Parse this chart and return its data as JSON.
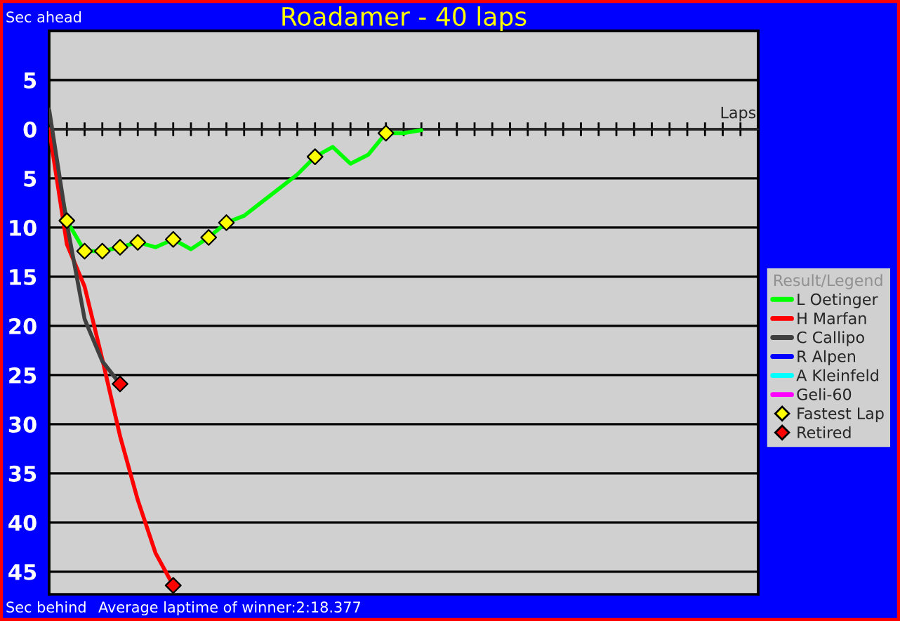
{
  "chart_data": {
    "type": "line",
    "title": "Roadamer - 40 laps",
    "xlabel": "Laps",
    "legend_title": "Result/Legend",
    "annotations": [
      "Sec ahead",
      "Sec behind",
      "Average laptime of winner:2:18.377"
    ],
    "categories": [
      null,
      null,
      null,
      null,
      null,
      null,
      null,
      null,
      null,
      null,
      null,
      null,
      null,
      null,
      null,
      null,
      null,
      null,
      null,
      null,
      null,
      null,
      null,
      null,
      null,
      null,
      null,
      null,
      null,
      null,
      null,
      null,
      null,
      null,
      null,
      null,
      null,
      null,
      null,
      null,
      null
    ],
    "ylim": [
      47.3,
      -10
    ],
    "yticks": [
      {
        "value": -5,
        "label": "5"
      },
      0,
      5,
      10,
      15,
      20,
      25,
      30,
      35,
      40,
      45
    ],
    "grid": "y",
    "legend": "right",
    "marker": "none",
    "series": [
      {
        "name": "L Oetinger",
        "color": "#00ff00",
        "values": [
          0,
          9.3,
          12.4,
          12.4,
          12.0,
          11.5,
          12.0,
          11.2,
          12.2,
          11.0,
          9.5,
          8.8,
          7.4,
          6.0,
          4.6,
          2.8,
          1.8,
          3.5,
          2.6,
          0.4,
          0.4,
          0.1,
          null,
          null,
          null,
          null,
          null,
          null,
          null,
          null,
          null,
          null,
          null,
          null,
          null,
          null,
          null,
          null,
          null,
          null,
          null
        ]
      },
      {
        "name": "H Marfan",
        "color": "#ff0000",
        "values": [
          0,
          11.7,
          16.0,
          23.4,
          31.2,
          37.7,
          43.1,
          46.4,
          null,
          null,
          null,
          null,
          null,
          null,
          null,
          null,
          null,
          null,
          null,
          null,
          null,
          null,
          null,
          null,
          null,
          null,
          null,
          null,
          null,
          null,
          null,
          null,
          null,
          null,
          null,
          null,
          null,
          null,
          null,
          null,
          null
        ]
      },
      {
        "name": "C Callipo",
        "color": "#404040",
        "values": [
          -2,
          9.6,
          19.3,
          23.6,
          25.9,
          null,
          null,
          null,
          null,
          null,
          null,
          null,
          null,
          null,
          null,
          null,
          null,
          null,
          null,
          null,
          null,
          null,
          null,
          null,
          null,
          null,
          null,
          null,
          null,
          null,
          null,
          null,
          null,
          null,
          null,
          null,
          null,
          null,
          null,
          null,
          null
        ]
      },
      {
        "name": "R Alpen",
        "color": "#0000ff",
        "values": [
          null,
          null,
          null,
          null,
          null,
          null,
          null,
          null,
          null,
          null,
          null,
          null,
          null,
          null,
          null,
          null,
          null,
          null,
          null,
          null,
          null,
          null,
          null,
          null,
          null,
          null,
          null,
          null,
          null,
          null,
          null,
          null,
          null,
          null,
          null,
          null,
          null,
          null,
          null,
          null,
          null
        ]
      },
      {
        "name": "A Kleinfeld",
        "color": "#00ffff",
        "values": [
          null,
          null,
          null,
          null,
          null,
          null,
          null,
          null,
          null,
          null,
          null,
          null,
          null,
          null,
          null,
          null,
          null,
          null,
          null,
          null,
          null,
          null,
          null,
          null,
          null,
          null,
          null,
          null,
          null,
          null,
          null,
          null,
          null,
          null,
          null,
          null,
          null,
          null,
          null,
          null,
          null
        ]
      },
      {
        "name": "Geli-60",
        "color": "#ff00ff",
        "values": [
          null,
          null,
          null,
          null,
          null,
          null,
          null,
          null,
          null,
          null,
          null,
          null,
          null,
          null,
          null,
          null,
          null,
          null,
          null,
          null,
          null,
          null,
          null,
          null,
          null,
          null,
          null,
          null,
          null,
          null,
          null,
          null,
          null,
          null,
          null,
          null,
          null,
          null,
          null,
          null,
          null
        ]
      },
      {
        "name": "Fastest Lap",
        "type": "scatter",
        "marker": "diamond",
        "color": "#ffff00",
        "values": [
          null,
          9.3,
          12.4,
          12.4,
          12.0,
          11.5,
          null,
          11.2,
          null,
          11.0,
          9.5,
          null,
          null,
          null,
          null,
          2.8,
          null,
          null,
          null,
          0.4,
          null,
          null,
          null,
          null,
          null,
          null,
          null,
          null,
          null,
          null,
          null,
          null,
          null,
          null,
          null,
          null,
          null,
          null,
          null,
          null,
          null
        ]
      },
      {
        "name": "Retired",
        "type": "scatter",
        "marker": "diamond",
        "color": "#ff0000",
        "values": [
          null,
          null,
          null,
          null,
          25.9,
          null,
          null,
          46.4,
          null,
          null,
          null,
          null,
          null,
          null,
          null,
          null,
          null,
          null,
          null,
          null,
          null,
          null,
          null,
          null,
          null,
          null,
          null,
          null,
          null,
          null,
          null,
          null,
          null,
          null,
          null,
          null,
          null,
          null,
          null,
          null,
          null
        ]
      }
    ]
  }
}
